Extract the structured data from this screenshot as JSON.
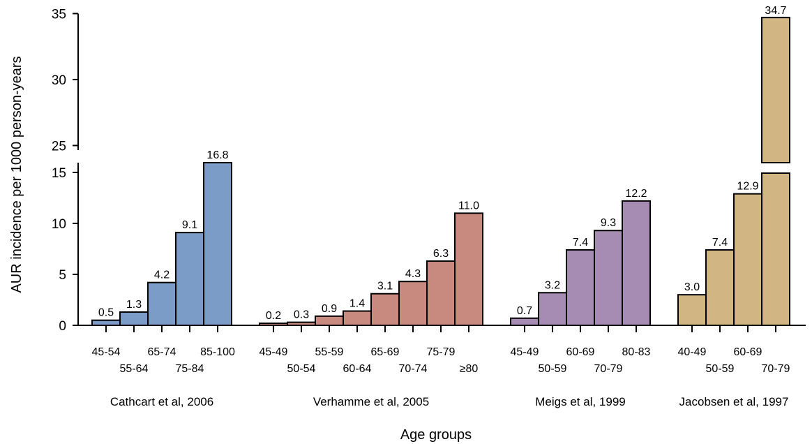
{
  "chart_data": {
    "type": "bar",
    "title": "",
    "ylabel": "AUR incidence per 1000 person-years",
    "xlabel": "Age groups",
    "ylim": [
      0,
      35
    ],
    "y_axis_break": [
      15.7,
      24.6
    ],
    "lower_ticks": [
      0,
      5,
      10,
      15
    ],
    "upper_ticks": [
      25,
      30,
      35
    ],
    "grid": false,
    "legend": "none",
    "groups": [
      {
        "name": "Cathcart et al, 2006",
        "color": "#7b9cc6",
        "categories": [
          "45-54",
          "55-64",
          "65-74",
          "75-84",
          "85-100"
        ],
        "values": [
          0.5,
          1.3,
          4.2,
          9.1,
          16.8
        ],
        "value_labels": [
          "0.5",
          "1.3",
          "4.2",
          "9.1",
          "16.8"
        ]
      },
      {
        "name": "Verhamme et al, 2005",
        "color": "#c88a7e",
        "categories": [
          "45-49",
          "50-54",
          "55-59",
          "60-64",
          "65-69",
          "70-74",
          "75-79",
          "≥80"
        ],
        "values": [
          0.2,
          0.3,
          0.9,
          1.4,
          3.1,
          4.3,
          6.3,
          11.0
        ],
        "value_labels": [
          "0.2",
          "0.3",
          "0.9",
          "1.4",
          "3.1",
          "4.3",
          "6.3",
          "11.0"
        ]
      },
      {
        "name": "Meigs et al, 1999",
        "color": "#a68cb3",
        "categories": [
          "45-49",
          "50-59",
          "60-69",
          "70-79",
          "80-83"
        ],
        "values": [
          0.7,
          3.2,
          7.4,
          9.3,
          12.2
        ],
        "value_labels": [
          "0.7",
          "3.2",
          "7.4",
          "9.3",
          "12.2"
        ]
      },
      {
        "name": "Jacobsen et al, 1997",
        "color": "#d1b684",
        "categories": [
          "40-49",
          "50-59",
          "60-69",
          "70-79"
        ],
        "values": [
          3.0,
          7.4,
          12.9,
          34.7
        ],
        "value_labels": [
          "3.0",
          "7.4",
          "12.9",
          "34.7"
        ]
      }
    ]
  }
}
